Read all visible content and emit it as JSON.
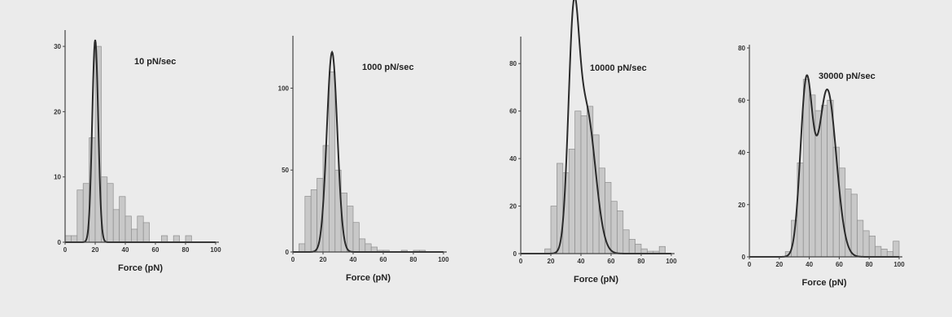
{
  "chart_data": [
    {
      "type": "bar",
      "title": "10 pN/sec",
      "xlabel": "Force (pN)",
      "ylabel": "",
      "xlim": [
        0,
        100
      ],
      "ylim": [
        0,
        32
      ],
      "xticks": [
        0,
        20,
        40,
        60,
        80,
        100
      ],
      "yticks": [
        0,
        10,
        20,
        30
      ],
      "bin_width": 4,
      "bins": [
        {
          "x": 0,
          "y": 1
        },
        {
          "x": 4,
          "y": 1
        },
        {
          "x": 8,
          "y": 8
        },
        {
          "x": 12,
          "y": 9
        },
        {
          "x": 16,
          "y": 16
        },
        {
          "x": 20,
          "y": 30
        },
        {
          "x": 24,
          "y": 10
        },
        {
          "x": 28,
          "y": 9
        },
        {
          "x": 32,
          "y": 5
        },
        {
          "x": 36,
          "y": 7
        },
        {
          "x": 40,
          "y": 4
        },
        {
          "x": 44,
          "y": 2
        },
        {
          "x": 48,
          "y": 4
        },
        {
          "x": 52,
          "y": 3
        },
        {
          "x": 56,
          "y": 0
        },
        {
          "x": 60,
          "y": 0
        },
        {
          "x": 64,
          "y": 1
        },
        {
          "x": 68,
          "y": 0
        },
        {
          "x": 72,
          "y": 1
        },
        {
          "x": 76,
          "y": 0
        },
        {
          "x": 80,
          "y": 1
        },
        {
          "x": 84,
          "y": 0
        },
        {
          "x": 88,
          "y": 0
        }
      ],
      "fit_peaks": [
        {
          "center": 20,
          "height": 31,
          "sigma": 2
        }
      ]
    },
    {
      "type": "bar",
      "title": "1000 pN/sec",
      "xlabel": "Force (pN)",
      "ylabel": "",
      "xlim": [
        0,
        100
      ],
      "ylim": [
        0,
        130
      ],
      "xticks": [
        0,
        20,
        40,
        60,
        80,
        100
      ],
      "yticks": [
        0,
        50,
        100
      ],
      "bin_width": 4,
      "bins": [
        {
          "x": 4,
          "y": 5
        },
        {
          "x": 8,
          "y": 34
        },
        {
          "x": 12,
          "y": 38
        },
        {
          "x": 16,
          "y": 45
        },
        {
          "x": 20,
          "y": 65
        },
        {
          "x": 24,
          "y": 110
        },
        {
          "x": 28,
          "y": 50
        },
        {
          "x": 32,
          "y": 36
        },
        {
          "x": 36,
          "y": 28
        },
        {
          "x": 40,
          "y": 18
        },
        {
          "x": 44,
          "y": 8
        },
        {
          "x": 48,
          "y": 5
        },
        {
          "x": 52,
          "y": 3
        },
        {
          "x": 56,
          "y": 1
        },
        {
          "x": 60,
          "y": 1
        },
        {
          "x": 64,
          "y": 0
        },
        {
          "x": 68,
          "y": 0
        },
        {
          "x": 72,
          "y": 1
        },
        {
          "x": 76,
          "y": 0
        },
        {
          "x": 80,
          "y": 1
        },
        {
          "x": 84,
          "y": 1
        }
      ],
      "fit_peaks": [
        {
          "center": 26,
          "height": 122,
          "sigma": 3.5
        }
      ]
    },
    {
      "type": "bar",
      "title": "10000 pN/sec",
      "xlabel": "Force (pN)",
      "ylabel": "",
      "xlim": [
        0,
        100
      ],
      "ylim": [
        0,
        90
      ],
      "xticks": [
        0,
        20,
        40,
        60,
        80,
        100
      ],
      "yticks": [
        0,
        20,
        40,
        60,
        80
      ],
      "bin_width": 4,
      "bins": [
        {
          "x": 16,
          "y": 2
        },
        {
          "x": 20,
          "y": 20
        },
        {
          "x": 24,
          "y": 38
        },
        {
          "x": 28,
          "y": 34
        },
        {
          "x": 32,
          "y": 44
        },
        {
          "x": 36,
          "y": 60
        },
        {
          "x": 40,
          "y": 58
        },
        {
          "x": 44,
          "y": 62
        },
        {
          "x": 48,
          "y": 50
        },
        {
          "x": 52,
          "y": 36
        },
        {
          "x": 56,
          "y": 30
        },
        {
          "x": 60,
          "y": 22
        },
        {
          "x": 64,
          "y": 18
        },
        {
          "x": 68,
          "y": 10
        },
        {
          "x": 72,
          "y": 6
        },
        {
          "x": 76,
          "y": 4
        },
        {
          "x": 80,
          "y": 2
        },
        {
          "x": 84,
          "y": 1
        },
        {
          "x": 88,
          "y": 1
        },
        {
          "x": 92,
          "y": 3
        }
      ],
      "fit_peaks": [
        {
          "center": 35,
          "height": 84,
          "sigma": 3.5
        },
        {
          "center": 43.5,
          "height": 60,
          "sigma": 6
        }
      ]
    },
    {
      "type": "bar",
      "title": "30000 pN/sec",
      "xlabel": "Force (pN)",
      "ylabel": "",
      "xlim": [
        0,
        100
      ],
      "ylim": [
        0,
        80
      ],
      "xticks": [
        0,
        20,
        40,
        60,
        80,
        100
      ],
      "yticks": [
        0,
        20,
        40,
        60,
        80
      ],
      "bin_width": 4,
      "bins": [
        {
          "x": 24,
          "y": 2
        },
        {
          "x": 28,
          "y": 14
        },
        {
          "x": 32,
          "y": 36
        },
        {
          "x": 36,
          "y": 68
        },
        {
          "x": 40,
          "y": 62
        },
        {
          "x": 44,
          "y": 56
        },
        {
          "x": 48,
          "y": 58
        },
        {
          "x": 52,
          "y": 60
        },
        {
          "x": 56,
          "y": 42
        },
        {
          "x": 60,
          "y": 34
        },
        {
          "x": 64,
          "y": 26
        },
        {
          "x": 68,
          "y": 24
        },
        {
          "x": 72,
          "y": 14
        },
        {
          "x": 76,
          "y": 10
        },
        {
          "x": 80,
          "y": 8
        },
        {
          "x": 84,
          "y": 4
        },
        {
          "x": 88,
          "y": 3
        },
        {
          "x": 92,
          "y": 2
        },
        {
          "x": 96,
          "y": 6
        }
      ],
      "fit_peaks": [
        {
          "center": 38,
          "height": 65,
          "sigma": 4
        },
        {
          "center": 52,
          "height": 64,
          "sigma": 6
        }
      ]
    }
  ],
  "colors": {
    "background": "#ebebeb",
    "bar_fill": "#c8c8c8",
    "bar_stroke": "#8e8e8e",
    "fit_line": "#2a2a2a",
    "axis": "#444444"
  }
}
